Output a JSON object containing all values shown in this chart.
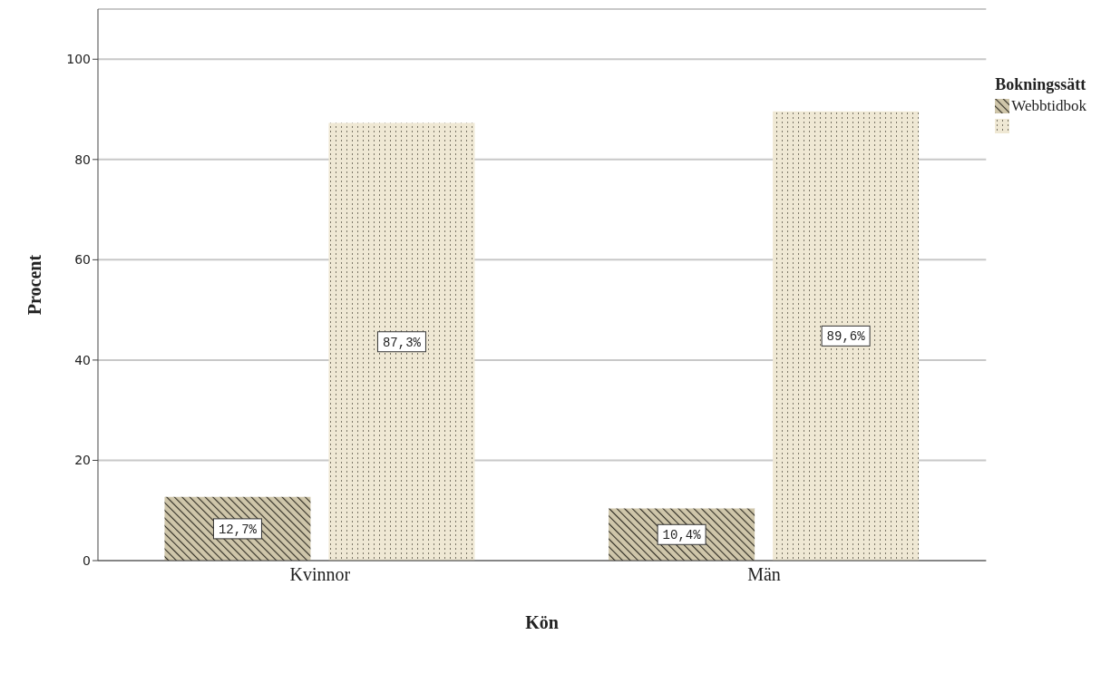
{
  "chart_data": {
    "type": "bar",
    "xlabel": "Kön",
    "ylabel": "Procent",
    "legend_title": "Bokningssätt",
    "categories": [
      "Kvinnor",
      "Män"
    ],
    "series": [
      {
        "name": "Webbtidbok",
        "color": "#cfc6aa",
        "values": [
          12.7,
          10.4
        ],
        "value_labels": [
          "12,7%",
          "10,4%"
        ]
      },
      {
        "color": "#efe8d4",
        "values": [
          87.3,
          89.6
        ],
        "value_labels": [
          "87,3%",
          "89,6%"
        ]
      }
    ],
    "ylim": [
      0,
      110
    ],
    "yticks": [
      0,
      20,
      40,
      60,
      80,
      100
    ],
    "grid": "y",
    "legend": "top right"
  }
}
